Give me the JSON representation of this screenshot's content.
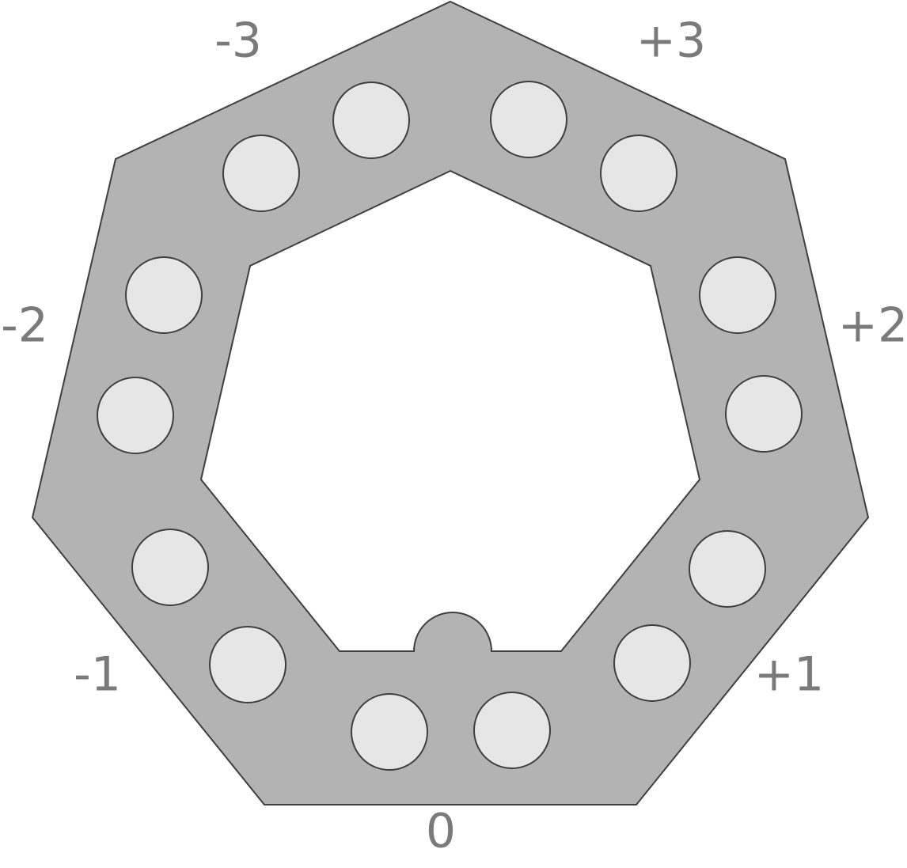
{
  "diagram": {
    "colors": {
      "ring_fill": "#b3b3b3",
      "ring_stroke": "#3f3f3f",
      "hole_fill": "#e6e6e6",
      "label_color": "#7a7a7a",
      "background": "#ffffff"
    },
    "labels": {
      "minus3": "-3",
      "plus3": "+3",
      "minus2": "-2",
      "plus2": "+2",
      "minus1": "-1",
      "plus1": "+1",
      "zero": "0"
    }
  }
}
